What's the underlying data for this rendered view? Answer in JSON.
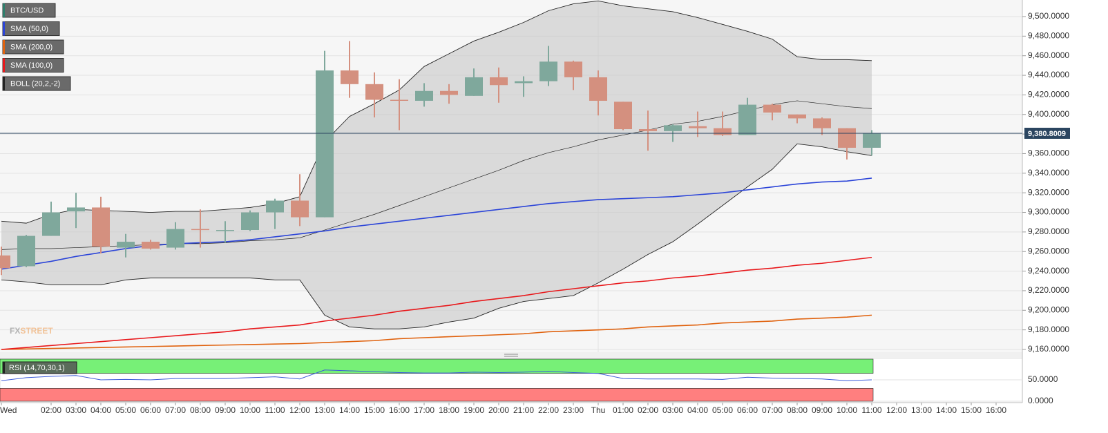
{
  "chart_data": {
    "type": "candlestick",
    "symbol": "BTC/USD",
    "symbol_color": "#2d7d6b",
    "up_color": "#7fa89c",
    "down_color": "#d4907f",
    "categories": [
      "Wed",
      null,
      "02:00",
      "03:00",
      "04:00",
      "05:00",
      "06:00",
      "07:00",
      "08:00",
      "09:00",
      "10:00",
      "11:00",
      "12:00",
      "13:00",
      "14:00",
      "15:00",
      "16:00",
      "17:00",
      "18:00",
      "19:00",
      "20:00",
      "21:00",
      "22:00",
      "23:00",
      "Thu",
      "01:00",
      "02:00",
      "03:00",
      "04:00",
      "05:00",
      "06:00",
      "07:00",
      "08:00",
      "09:00",
      "10:00",
      "11:00",
      "12:00",
      "13:00",
      "14:00",
      "15:00",
      "16:00"
    ],
    "open": [
      9256,
      9245,
      9276,
      9301,
      9305,
      9264,
      9270,
      9264,
      9283,
      9281,
      9282,
      9300,
      9312,
      9295,
      9445,
      9431,
      9415,
      9414,
      9424,
      9419,
      9438,
      9432,
      9434,
      9454,
      9438,
      9413,
      9385,
      9383,
      9388,
      9386,
      9379,
      9410,
      9400,
      9396,
      9386,
      9366,
      null,
      null,
      null,
      null,
      null
    ],
    "high": [
      9265,
      9277,
      9311,
      9320,
      9316,
      9278,
      9272,
      9290,
      9303,
      9291,
      9302,
      9314,
      9339,
      9465,
      9475,
      9443,
      9436,
      9432,
      9431,
      9447,
      9448,
      9439,
      9470,
      9455,
      9445,
      9413,
      9404,
      9390,
      9403,
      9403,
      9417,
      9411,
      9400,
      9397,
      9386,
      9384,
      null,
      null,
      null,
      null,
      null
    ],
    "low": [
      9236,
      9244,
      9276,
      9284,
      9258,
      9254,
      9262,
      9262,
      9264,
      9269,
      9281,
      9283,
      9286,
      9295,
      9417,
      9397,
      9384,
      9408,
      9411,
      9419,
      9412,
      9418,
      9429,
      9425,
      9399,
      9384,
      9363,
      9372,
      9377,
      9378,
      9379,
      9394,
      9391,
      9379,
      9354,
      9358,
      null,
      null,
      null,
      null,
      null
    ],
    "close": [
      9243,
      9276,
      9300,
      9305,
      9265,
      9270,
      9263,
      9283,
      9282,
      9282,
      9300,
      9312,
      9295,
      9445,
      9431,
      9415,
      9414,
      9424,
      9420,
      9438,
      9430,
      9434,
      9454,
      9438,
      9414,
      9385,
      9383,
      9389,
      9386,
      9379,
      9410,
      9402,
      9396,
      9386,
      9366,
      9380.8009,
      null,
      null,
      null,
      null,
      null
    ],
    "last_price": {
      "value": 9380.8009,
      "label": "9,380.8009"
    },
    "indicators": [
      {
        "name": "SMA (50,0)",
        "color": "#2b44d8",
        "values": [
          9242,
          9246,
          9250,
          9255,
          9259,
          9263,
          9266,
          9268,
          9269,
          9270,
          9272,
          9275,
          9278,
          9281,
          9285,
          9288,
          9291,
          9294,
          9297,
          9300,
          9303,
          9306,
          9309,
          9311,
          9313,
          9314,
          9315,
          9316,
          9318,
          9320,
          9323,
          9326,
          9329,
          9331,
          9332,
          9335,
          null,
          null,
          null,
          null,
          null
        ]
      },
      {
        "name": "SMA (200,0)",
        "color": "#e0620e",
        "values": [
          9160,
          9160.5,
          9161,
          9161.5,
          9162,
          9162.5,
          9163,
          9163.5,
          9164,
          9164.5,
          9165,
          9165.5,
          9166,
          9167,
          9168,
          9169,
          9171,
          9172,
          9173,
          9174,
          9175,
          9176,
          9178,
          9179,
          9180,
          9181,
          9183,
          9184,
          9185,
          9187,
          9188,
          9189,
          9191,
          9192,
          9193,
          9195,
          null,
          null,
          null,
          null,
          null
        ]
      },
      {
        "name": "SMA (100,0)",
        "color": "#e8181b",
        "values": [
          9160,
          9162,
          9164,
          9166,
          9168,
          9170,
          9172,
          9174,
          9176,
          9178,
          9181,
          9183,
          9185,
          9189,
          9192,
          9195,
          9199,
          9202,
          9205,
          9209,
          9212,
          9215,
          9219,
          9222,
          9225,
          9228,
          9230,
          9233,
          9235,
          9238,
          9241,
          9243,
          9246,
          9248,
          9251,
          9254,
          null,
          null,
          null,
          null,
          null
        ]
      }
    ],
    "bollinger": {
      "name": "BOLL (20,2,-2)",
      "color": "#222222",
      "upper": [
        9291,
        9289,
        9298,
        9303,
        9302,
        9301,
        9300,
        9301,
        9301,
        9303,
        9305,
        9309,
        9316,
        9372,
        9398,
        9411,
        9425,
        9449,
        9462,
        9475,
        9484,
        9494,
        9506,
        9513,
        9516,
        9511,
        9508,
        9505,
        9499,
        9492,
        9485,
        9477,
        9459,
        9456,
        9456,
        9455,
        null,
        null,
        null,
        null,
        null
      ],
      "middle": [
        9262,
        9263,
        9263,
        9264,
        9265,
        9266,
        9267,
        9268,
        9268,
        9269,
        9271,
        9272,
        9274,
        9282,
        9290,
        9298,
        9307,
        9316,
        9325,
        9334,
        9343,
        9353,
        9361,
        9367,
        9374,
        9379,
        9384,
        9390,
        9393,
        9398,
        9404,
        9410,
        9414,
        9411,
        9408,
        9406,
        null,
        null,
        null,
        null,
        null
      ],
      "lower": [
        9231,
        9229,
        9226,
        9226,
        9226,
        9231,
        9233,
        9233,
        9233,
        9233,
        9233,
        9231,
        9231,
        9195,
        9183,
        9181,
        9181,
        9183,
        9188,
        9192,
        9202,
        9209,
        9212,
        9215,
        9228,
        9242,
        9257,
        9270,
        9288,
        9307,
        9326,
        9344,
        9370,
        9367,
        9362,
        9358,
        null,
        null,
        null,
        null,
        null
      ]
    },
    "ylim": [
      9160,
      9500
    ],
    "yticks": [
      {
        "value": 9160,
        "label": "9,160.0000"
      },
      {
        "value": 9180,
        "label": "9,180.0000"
      },
      {
        "value": 9200,
        "label": "9,200.0000"
      },
      {
        "value": 9220,
        "label": "9,220.0000"
      },
      {
        "value": 9240,
        "label": "9,240.0000"
      },
      {
        "value": 9260,
        "label": "9,260.0000"
      },
      {
        "value": 9280,
        "label": "9,280.0000"
      },
      {
        "value": 9300,
        "label": "9,300.0000"
      },
      {
        "value": 9320,
        "label": "9,320.0000"
      },
      {
        "value": 9340,
        "label": "9,340.0000"
      },
      {
        "value": 9360,
        "label": "9,360.0000"
      },
      {
        "value": 9380,
        "label": "9,380.0000"
      },
      {
        "value": 9400,
        "label": "9,400.0000"
      },
      {
        "value": 9420,
        "label": "9,420.0000"
      },
      {
        "value": 9440,
        "label": "9,440.0000"
      },
      {
        "value": 9460,
        "label": "9,460.0000"
      },
      {
        "value": 9480,
        "label": "9,480.0000"
      },
      {
        "value": 9500,
        "label": "9,500.0000"
      }
    ],
    "grid": true,
    "watermark": [
      "FX",
      "STREET"
    ],
    "rsi": {
      "name": "RSI (14,70,30,1)",
      "color": "#3b5bd9",
      "values": [
        48,
        55,
        58,
        60,
        50,
        51,
        50,
        53,
        53,
        53,
        55,
        57,
        52,
        73,
        71,
        69,
        67,
        66,
        66,
        68,
        67,
        68,
        70,
        67,
        65,
        53,
        52,
        52,
        52,
        51,
        56,
        54,
        53,
        52,
        48,
        50,
        null,
        null,
        null,
        null,
        null
      ],
      "ylim": [
        0,
        100
      ],
      "yticks": [
        {
          "value": 0,
          "label": "0.0000"
        },
        {
          "value": 50,
          "label": "50.0000"
        }
      ],
      "overbought": 70,
      "oversold": 30
    }
  }
}
